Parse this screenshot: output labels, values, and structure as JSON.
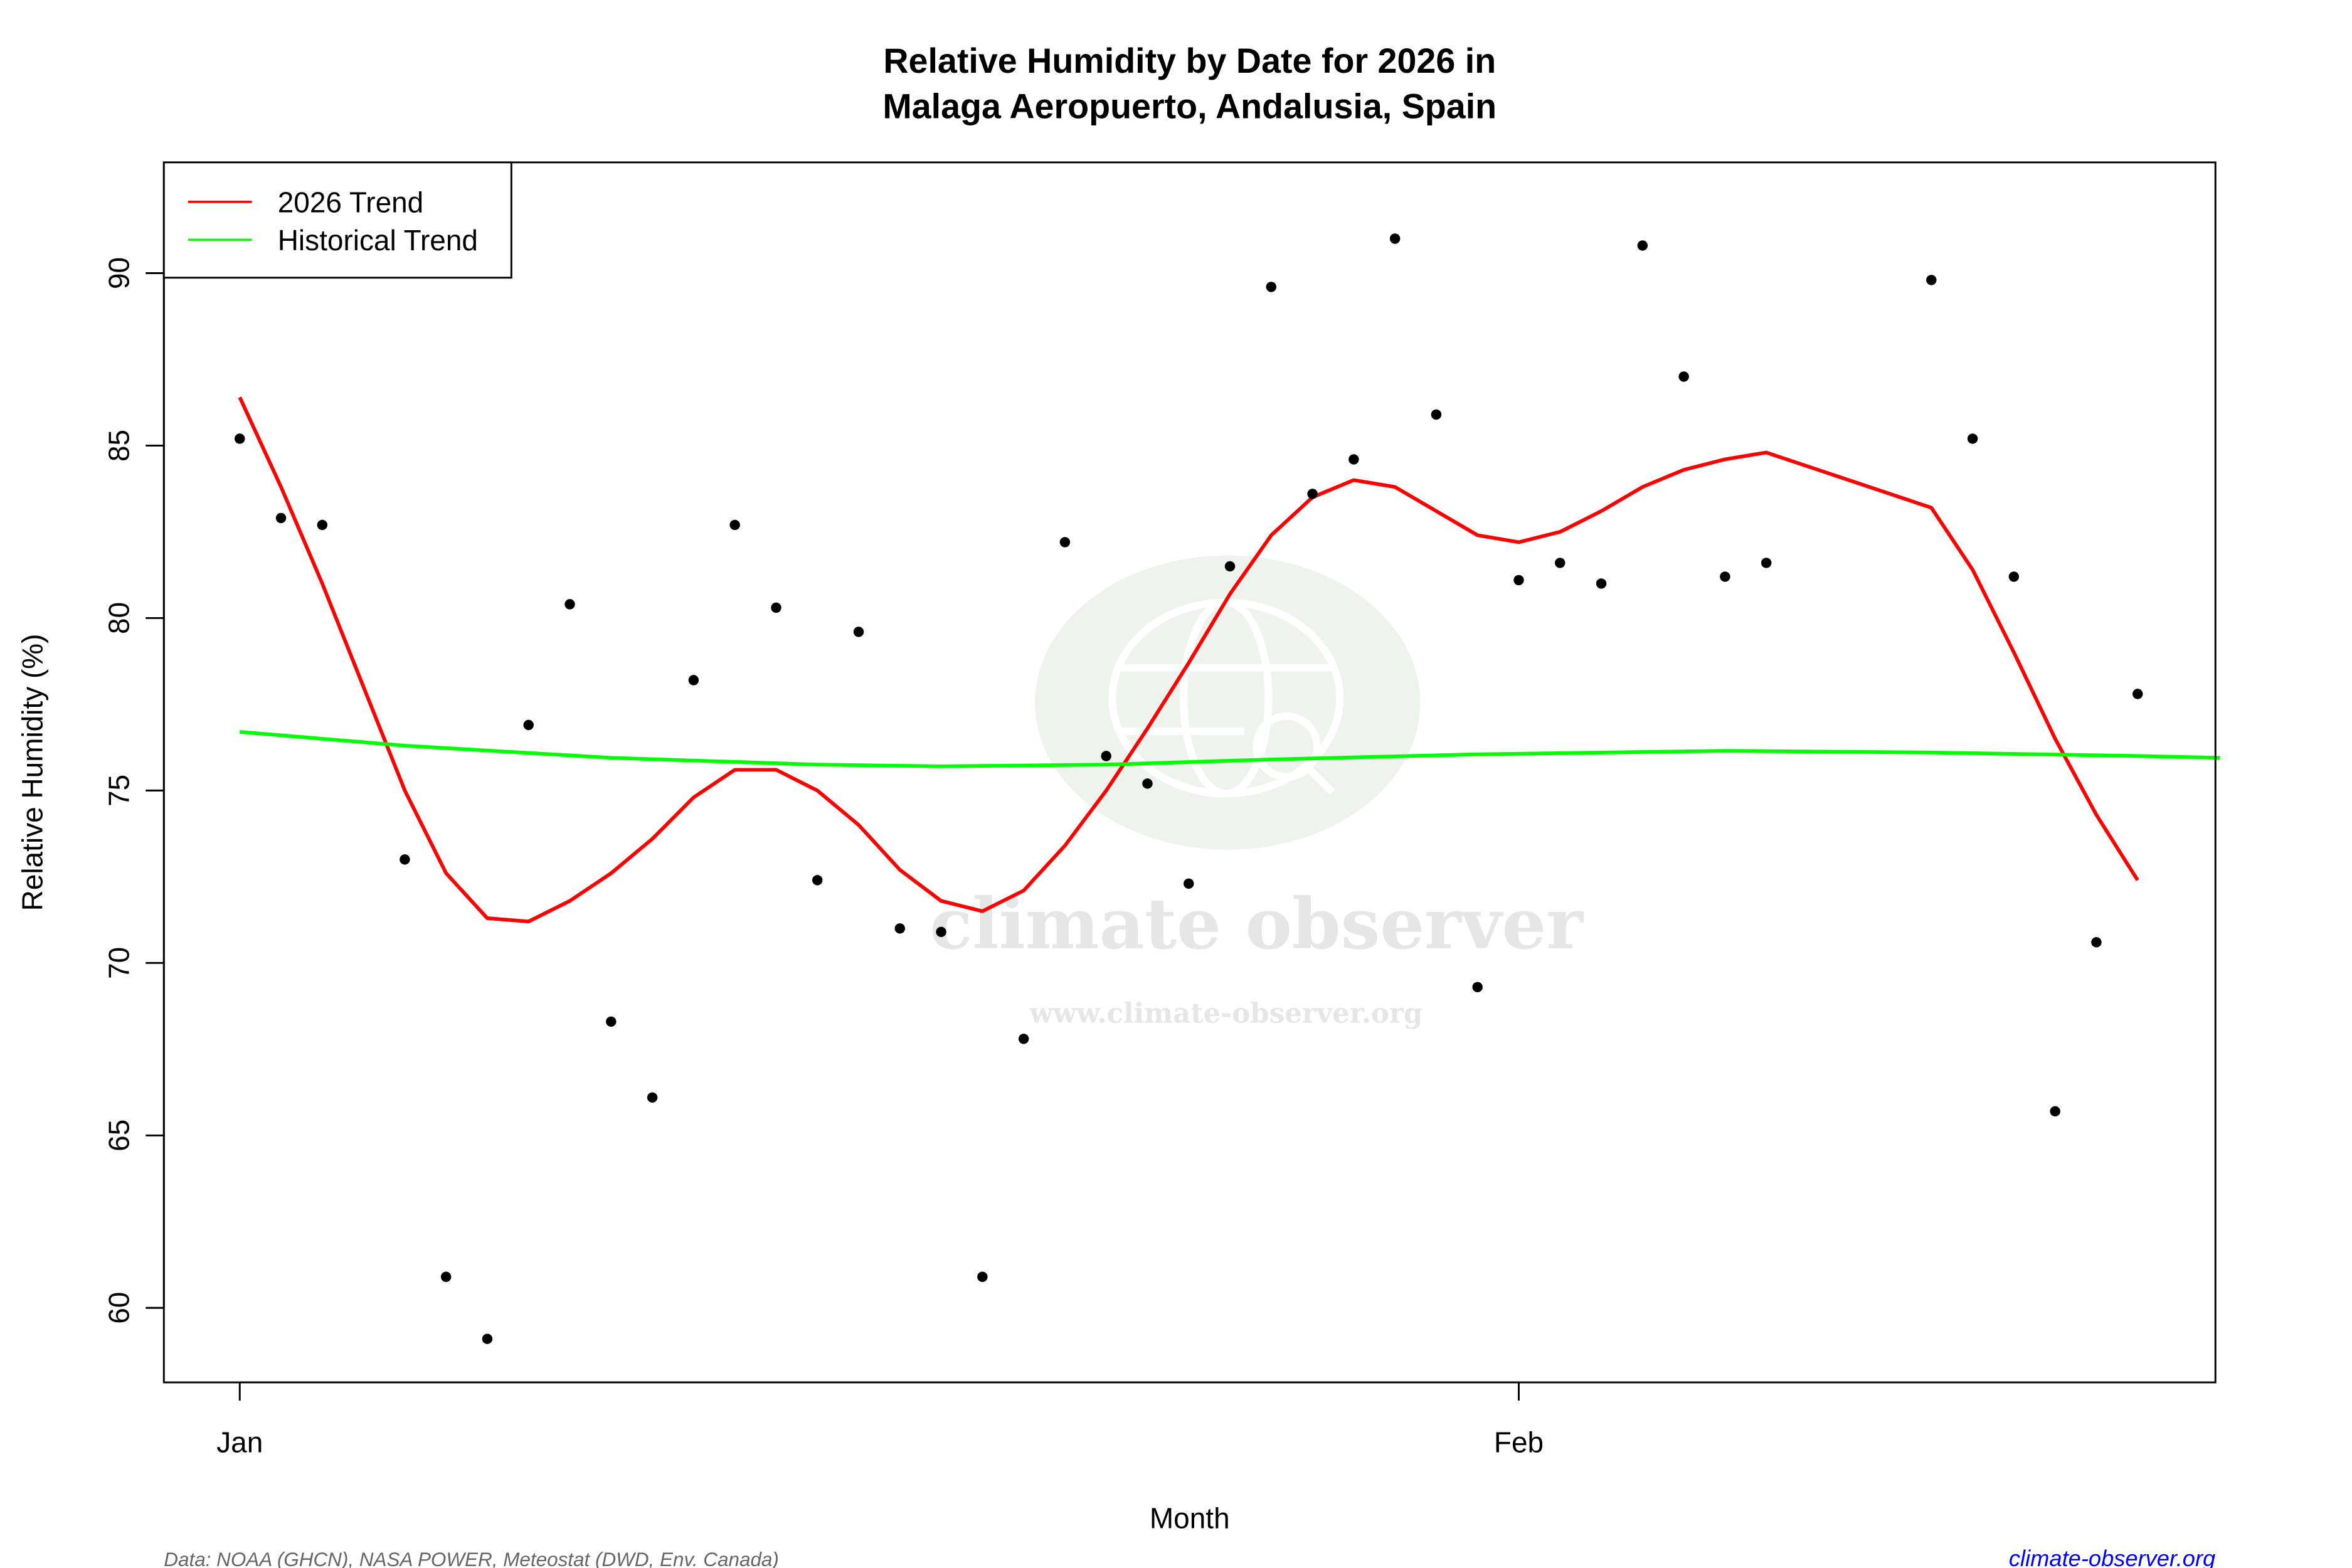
{
  "chart_data": {
    "type": "scatter",
    "title": "Relative Humidity by Date for 2026 in",
    "subtitle": "Malaga Aeropuerto, Andalusia, Spain",
    "xlabel": "Month",
    "ylabel": "Relative Humidity (%)",
    "xlim": [
      "2025-12-30",
      "2026-02-18"
    ],
    "ylim": [
      57.8,
      93.2
    ],
    "x_ticks": [
      {
        "date": "2026-01-01",
        "label": "Jan"
      },
      {
        "date": "2026-02-01",
        "label": "Feb"
      }
    ],
    "y_ticks": [
      60,
      65,
      70,
      75,
      80,
      85,
      90
    ],
    "grid": false,
    "legend": {
      "position": "top-left",
      "entries": [
        {
          "label": "2026 Trend",
          "color": "#ff0000"
        },
        {
          "label": "Historical Trend",
          "color": "#00ff00"
        }
      ]
    },
    "observations": [
      [
        "2026-01-01",
        85.2
      ],
      [
        "2026-01-02",
        82.9
      ],
      [
        "2026-01-03",
        82.7
      ],
      [
        "2026-01-05",
        73.0
      ],
      [
        "2026-01-06",
        60.9
      ],
      [
        "2026-01-07",
        59.1
      ],
      [
        "2026-01-08",
        76.9
      ],
      [
        "2026-01-09",
        80.4
      ],
      [
        "2026-01-10",
        68.3
      ],
      [
        "2026-01-11",
        66.1
      ],
      [
        "2026-01-12",
        78.2
      ],
      [
        "2026-01-13",
        82.7
      ],
      [
        "2026-01-14",
        80.3
      ],
      [
        "2026-01-15",
        72.4
      ],
      [
        "2026-01-16",
        79.6
      ],
      [
        "2026-01-17",
        71.0
      ],
      [
        "2026-01-18",
        70.9
      ],
      [
        "2026-01-19",
        60.9
      ],
      [
        "2026-01-20",
        67.8
      ],
      [
        "2026-01-21",
        82.2
      ],
      [
        "2026-01-22",
        76.0
      ],
      [
        "2026-01-23",
        75.2
      ],
      [
        "2026-01-24",
        72.3
      ],
      [
        "2026-01-25",
        81.5
      ],
      [
        "2026-01-26",
        89.6
      ],
      [
        "2026-01-27",
        83.6
      ],
      [
        "2026-01-28",
        84.6
      ],
      [
        "2026-01-29",
        91.0
      ],
      [
        "2026-01-30",
        85.9
      ],
      [
        "2026-01-31",
        69.3
      ],
      [
        "2026-02-01",
        81.1
      ],
      [
        "2026-02-02",
        81.6
      ],
      [
        "2026-02-03",
        81.0
      ],
      [
        "2026-02-04",
        90.8
      ],
      [
        "2026-02-05",
        87.0
      ],
      [
        "2026-02-06",
        81.2
      ],
      [
        "2026-02-07",
        81.6
      ],
      [
        "2026-02-11",
        89.8
      ],
      [
        "2026-02-12",
        85.2
      ],
      [
        "2026-02-13",
        81.2
      ],
      [
        "2026-02-14",
        65.7
      ],
      [
        "2026-02-15",
        70.6
      ],
      [
        "2026-02-16",
        77.8
      ]
    ],
    "series": [
      {
        "name": "2026 Trend",
        "color": "#ff0000",
        "points": [
          [
            "2026-01-01",
            86.4
          ],
          [
            "2026-01-02",
            83.8
          ],
          [
            "2026-01-03",
            81.0
          ],
          [
            "2026-01-04",
            78.0
          ],
          [
            "2026-01-05",
            75.0
          ],
          [
            "2026-01-06",
            72.6
          ],
          [
            "2026-01-07",
            71.3
          ],
          [
            "2026-01-08",
            71.2
          ],
          [
            "2026-01-09",
            71.8
          ],
          [
            "2026-01-10",
            72.6
          ],
          [
            "2026-01-11",
            73.6
          ],
          [
            "2026-01-12",
            74.8
          ],
          [
            "2026-01-13",
            75.6
          ],
          [
            "2026-01-14",
            75.6
          ],
          [
            "2026-01-15",
            75.0
          ],
          [
            "2026-01-16",
            74.0
          ],
          [
            "2026-01-17",
            72.7
          ],
          [
            "2026-01-18",
            71.8
          ],
          [
            "2026-01-19",
            71.5
          ],
          [
            "2026-01-20",
            72.1
          ],
          [
            "2026-01-21",
            73.4
          ],
          [
            "2026-01-22",
            75.0
          ],
          [
            "2026-01-23",
            76.8
          ],
          [
            "2026-01-24",
            78.7
          ],
          [
            "2026-01-25",
            80.7
          ],
          [
            "2026-01-26",
            82.4
          ],
          [
            "2026-01-27",
            83.5
          ],
          [
            "2026-01-28",
            84.0
          ],
          [
            "2026-01-29",
            83.8
          ],
          [
            "2026-01-30",
            83.1
          ],
          [
            "2026-01-31",
            82.4
          ],
          [
            "2026-02-01",
            82.2
          ],
          [
            "2026-02-02",
            82.5
          ],
          [
            "2026-02-03",
            83.1
          ],
          [
            "2026-02-04",
            83.8
          ],
          [
            "2026-02-05",
            84.3
          ],
          [
            "2026-02-06",
            84.6
          ],
          [
            "2026-02-07",
            84.8
          ],
          [
            "2026-02-11",
            83.2
          ],
          [
            "2026-02-12",
            81.4
          ],
          [
            "2026-02-13",
            79.0
          ],
          [
            "2026-02-14",
            76.5
          ],
          [
            "2026-02-15",
            74.3
          ],
          [
            "2026-02-16",
            72.4
          ]
        ]
      },
      {
        "name": "Historical Trend",
        "color": "#00ff00",
        "points": [
          [
            "2026-01-01",
            76.7
          ],
          [
            "2026-01-05",
            76.3
          ],
          [
            "2026-01-10",
            75.95
          ],
          [
            "2026-01-15",
            75.75
          ],
          [
            "2026-01-18",
            75.7
          ],
          [
            "2026-01-22",
            75.75
          ],
          [
            "2026-01-26",
            75.9
          ],
          [
            "2026-01-31",
            76.05
          ],
          [
            "2026-02-06",
            76.15
          ],
          [
            "2026-02-11",
            76.1
          ],
          [
            "2026-02-16",
            76.0
          ],
          [
            "2026-02-18",
            75.95
          ]
        ]
      }
    ]
  },
  "watermark": {
    "brand": "climate observer",
    "url": "www.climate-observer.org"
  },
  "footer": {
    "source": "Data: NOAA (GHCN), NASA POWER, Meteostat (DWD, Env. Canada)",
    "site": "climate-observer.org",
    "site_color": "#0000ff"
  }
}
